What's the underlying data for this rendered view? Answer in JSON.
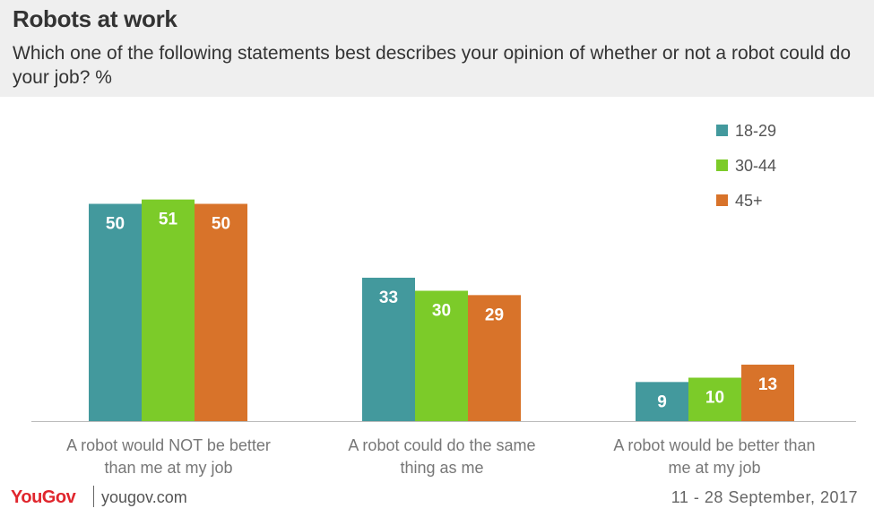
{
  "title": "Robots at work",
  "subtitle": "Which one of the following statements best describes your opinion of whether or not a robot could do your job? %",
  "footer": {
    "brand": "YouGov",
    "url": "yougov.com",
    "date": "11 - 28 September, 2017"
  },
  "colors": {
    "18-29": "#43999d",
    "30-44": "#7ccb29",
    "45+": "#d8732a"
  },
  "chart_data": {
    "type": "bar",
    "categories": [
      [
        "A robot would NOT be better",
        "than me at my job"
      ],
      [
        "A robot could do the same",
        "thing as me"
      ],
      [
        "A robot would be better than",
        "me at my job"
      ]
    ],
    "series": [
      {
        "name": "18-29",
        "values": [
          50,
          33,
          9
        ]
      },
      {
        "name": "30-44",
        "values": [
          51,
          30,
          10
        ]
      },
      {
        "name": "45+",
        "values": [
          50,
          29,
          13
        ]
      }
    ],
    "legend_position": "top-right",
    "grid": false
  }
}
